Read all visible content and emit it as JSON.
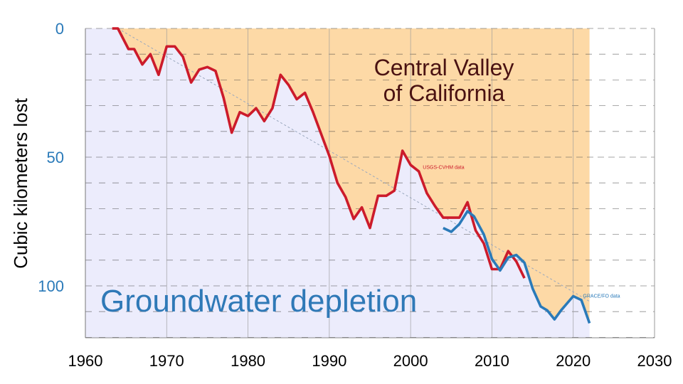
{
  "chart_data": {
    "type": "line",
    "title": "Central Valley of California",
    "title_lines": [
      "Central Valley",
      "of California"
    ],
    "subtitle": "Groundwater depletion",
    "ylabel": "Cubic kilometers lost",
    "xlabel": "",
    "xlim": [
      1960,
      2030
    ],
    "ylim": [
      0,
      120
    ],
    "y_inverted": true,
    "grid": true,
    "x_ticks": [
      1960,
      1970,
      1980,
      1990,
      2000,
      2010,
      2020,
      2030
    ],
    "y_ticks": [
      0,
      50,
      100
    ],
    "colors": {
      "lost_region": "#fdd9a6",
      "remaining_region": "#ececfc",
      "usgs": "#cc1b2b",
      "grace": "#2a7ab9",
      "trend": "#9aa8be",
      "title": "#4a1212",
      "subtitle": "#2f79b7",
      "ytick": "#2a7ab9"
    },
    "series": [
      {
        "name": "USGS-CVHM data",
        "color": "#cc1b2b",
        "x": [
          1963.3,
          1964,
          1965.3,
          1966,
          1967,
          1968,
          1969,
          1970,
          1971,
          1972,
          1973,
          1974,
          1975,
          1976,
          1977,
          1978,
          1979,
          1980,
          1981,
          1982,
          1983,
          1984,
          1985,
          1986,
          1987,
          1988,
          1989,
          1990,
          1991,
          1992,
          1993,
          1994,
          1995,
          1996,
          1997,
          1998,
          1999,
          2000,
          2001,
          2002,
          2003,
          2004,
          2005,
          2006,
          2007,
          2008,
          2009,
          2010,
          2011,
          2012,
          2013,
          2014
        ],
        "y": [
          0,
          0,
          8,
          8,
          14,
          10,
          18,
          7,
          7,
          11,
          21,
          16,
          15,
          16.5,
          27,
          40.5,
          32.5,
          34,
          31,
          36,
          31,
          18,
          22,
          27.5,
          25,
          32.5,
          41,
          49.5,
          60,
          65.5,
          74,
          69.5,
          77.5,
          65,
          65,
          63,
          47.5,
          53,
          55.5,
          64,
          69,
          73.5,
          73.5,
          73.5,
          67.5,
          78.5,
          83.5,
          93.5,
          93.5,
          86.5,
          90.5,
          97
        ]
      },
      {
        "name": "GRACE/FO data",
        "color": "#2a7ab9",
        "x": [
          2004,
          2005,
          2006,
          2007,
          2007.8,
          2009,
          2010,
          2011,
          2012,
          2013,
          2014,
          2015,
          2016,
          2016.8,
          2017.7,
          2018.5,
          2020,
          2021,
          2022
        ],
        "y": [
          77.5,
          79,
          76,
          71,
          73,
          80,
          89.5,
          94,
          89,
          88,
          91,
          101,
          108,
          109.5,
          113,
          109.5,
          104,
          105.5,
          114.5
        ]
      }
    ],
    "trend_line": {
      "x": [
        1964,
        2022
      ],
      "y": [
        0,
        106
      ]
    },
    "lost_region_end_year": 2022,
    "annotations": [
      {
        "text": "USGS-CVHM data",
        "x": 2001.5,
        "y": 54.5,
        "color": "#cc1b2b"
      },
      {
        "text": "GRACE/FO data",
        "x": 2021.2,
        "y": 104.5,
        "color": "#2a7ab9"
      }
    ]
  }
}
